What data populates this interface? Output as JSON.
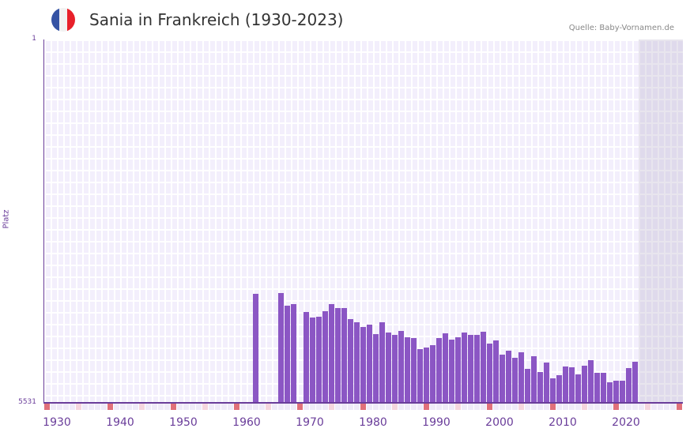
{
  "header": {
    "title": "Sania in Frankreich (1930-2023)",
    "source": "Quelle: Baby-Vornamen.de",
    "flag": "france-flag",
    "flag_colors": [
      "#3553a4",
      "#f2f2f2",
      "#e8202a"
    ]
  },
  "colors": {
    "bar": "#8b56c4",
    "axis": "#6a3d9a",
    "marker_major": "#e0707a",
    "marker_minor": "#f5d5de",
    "grid_bg": "#f3effc"
  },
  "chart_data": {
    "type": "bar",
    "title": "Sania in Frankreich (1930-2023)",
    "xlabel": "",
    "ylabel": "Platz",
    "ylim": [
      5531,
      1
    ],
    "y_ticks": [
      "1",
      "5531"
    ],
    "x_ticks": [
      "1930",
      "1940",
      "1950",
      "1960",
      "1970",
      "1980",
      "1990",
      "2000",
      "2010",
      "2020"
    ],
    "x": [
      1961,
      1965,
      1966,
      1967,
      1969,
      1970,
      1971,
      1972,
      1973,
      1974,
      1975,
      1976,
      1977,
      1978,
      1979,
      1980,
      1981,
      1982,
      1983,
      1984,
      1985,
      1986,
      1987,
      1988,
      1989,
      1990,
      1991,
      1992,
      1993,
      1994,
      1995,
      1996,
      1997,
      1998,
      1999,
      2000,
      2001,
      2002,
      2003,
      2004,
      2005,
      2006,
      2007,
      2008,
      2009,
      2010,
      2011,
      2012,
      2013,
      2014,
      2015,
      2016,
      2017,
      2018,
      2019,
      2020,
      2021
    ],
    "values": [
      3871,
      3859,
      4051,
      4027,
      4147,
      4231,
      4219,
      4135,
      4027,
      4087,
      4087,
      4255,
      4303,
      4375,
      4339,
      4484,
      4303,
      4460,
      4496,
      4436,
      4532,
      4544,
      4712,
      4688,
      4652,
      4544,
      4472,
      4568,
      4532,
      4460,
      4496,
      4496,
      4448,
      4628,
      4580,
      4797,
      4737,
      4845,
      4761,
      5013,
      4821,
      5061,
      4917,
      5157,
      5109,
      4977,
      4989,
      5097,
      4965,
      4881,
      5073,
      5073,
      5217,
      5193,
      5193,
      5001,
      4905
    ]
  }
}
